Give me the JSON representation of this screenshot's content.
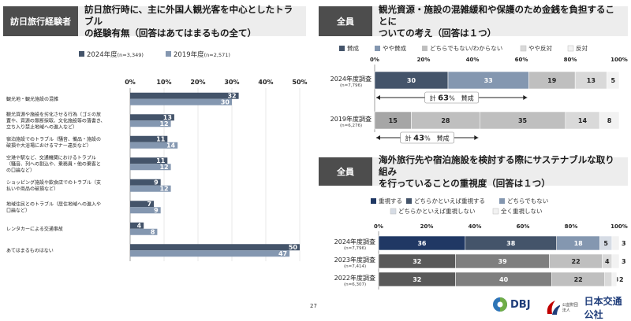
{
  "page_number": "27",
  "logos": {
    "dbj": "DBJ",
    "jtb_small": "公益財団法人",
    "jtb_big": "日本交通公社"
  },
  "left_panel": {
    "tag": "訪日旅行経験者",
    "title_lines": [
      "訪日旅行時に、主に外国人観光客を中心としたトラブル",
      "の経験有無（回答はあてはまるもの全て）"
    ]
  },
  "top_right_panel": {
    "tag": "全員",
    "title_lines": [
      "観光資源・施設の混雑緩和や保護のため金銭を負担することに",
      "ついての考え（回答は１つ）"
    ]
  },
  "bottom_right_panel": {
    "tag": "全員",
    "title_lines": [
      "海外旅行先や宿泊施設を検討する際にサステナブルな取り組み",
      "を行っていることの重視度（回答は１つ）"
    ]
  },
  "chart_data": [
    {
      "type": "bar",
      "orientation": "horizontal",
      "legend": [
        {
          "name": "2024年度",
          "n": "(n=3,349)",
          "color": "#44546a"
        },
        {
          "name": "2019年度",
          "n": "(n=2,571)",
          "color": "#8497b0"
        }
      ],
      "axis_ticks": [
        "0%",
        "10%",
        "20%",
        "30%",
        "40%",
        "50%"
      ],
      "xlim": [
        0,
        50
      ],
      "categories": [
        [
          "観光地・観光施設の混雑"
        ],
        [
          "観光資源や施設を劣化させる行為（ゴミの放",
          "置や、資源の無断採取、文化施設等の落書き、",
          "立ち入り禁止地域への進入など）"
        ],
        [
          "宿泊施設でのトラブル（騒音、備品・施設の",
          "破損や大浴場におけるマナー違反など）"
        ],
        [
          "空港や駅など、交通機関におけるトラブル",
          "（騒音、列への割込や、乗務員・他の乗客と",
          "の口論など）"
        ],
        [
          "ショッピング施設や飲食店でのトラブル（支",
          "払いや商品の破損など）"
        ],
        [
          "地域住民とのトラブル（居住地域への進入や",
          "口論など）"
        ],
        [
          "レンタカーによる交通事故"
        ],
        [
          "あてはまるものはない"
        ]
      ],
      "series": [
        {
          "name": "2024年度",
          "values": [
            32,
            13,
            11,
            11,
            9,
            7,
            4,
            50
          ]
        },
        {
          "name": "2019年度",
          "values": [
            30,
            12,
            14,
            12,
            12,
            9,
            8,
            47
          ]
        }
      ]
    },
    {
      "type": "bar",
      "orientation": "horizontal",
      "stacked": true,
      "legend_row1": [
        "賛成",
        "やや賛成",
        "どちらでもない/わからない",
        "やや反対",
        "反対"
      ],
      "colors": [
        "#44546a",
        "#8497b0",
        "#bfbfbf",
        "#d9d9d9",
        "#f2f2f2"
      ],
      "axis_ticks": [
        "0%",
        "20%",
        "40%",
        "60%",
        "80%",
        "100%"
      ],
      "rows": [
        {
          "label": "2024年度調査",
          "n": "(n=7,796)",
          "values": [
            30,
            33,
            19,
            13,
            5
          ],
          "colors": [
            "#44546a",
            "#8497b0",
            "#bfbfbf",
            "#d9d9d9",
            "#f2f2f2"
          ]
        },
        {
          "label": "2019年度調査",
          "n": "(n=6,276)",
          "values": [
            15,
            28,
            35,
            14,
            8
          ],
          "colors": [
            "#a6a6a6",
            "#bfbfbf",
            "#bfbfbf",
            "#d9d9d9",
            "#f2f2f2"
          ]
        }
      ],
      "annotations": [
        {
          "prefix": "計",
          "value": "63",
          "suffix": "%　賛成"
        },
        {
          "prefix": "計",
          "value": "43",
          "suffix": "%　賛成"
        }
      ]
    },
    {
      "type": "bar",
      "orientation": "horizontal",
      "stacked": true,
      "legend_row1": [
        "重視する",
        "どちらかといえば重視する",
        "どちらでもない"
      ],
      "legend_row2": [
        "どちらかといえば重視しない",
        "全く重視しない"
      ],
      "colors": [
        "#203864",
        "#44546a",
        "#8497b0",
        "#d6dce5",
        "#f2f2f2"
      ],
      "axis_ticks": [
        "0%",
        "20%",
        "40%",
        "60%",
        "80%",
        "100%"
      ],
      "rows": [
        {
          "label": "2024年度調査",
          "n": "(n=7,796)",
          "values": [
            36,
            38,
            18,
            5,
            3
          ],
          "colors": [
            "#203864",
            "#44546a",
            "#8497b0",
            "#d6dce5",
            "#f2f2f2"
          ]
        },
        {
          "label": "2023年度調査",
          "n": "(n=7,414)",
          "values": [
            32,
            39,
            22,
            4,
            3
          ],
          "colors": [
            "#595959",
            "#7f7f7f",
            "#bfbfbf",
            "#d9d9d9",
            "#f2f2f2"
          ]
        },
        {
          "label": "2022年度調査",
          "n": "(n=6,307)",
          "values": [
            32,
            40,
            22,
            3,
            2
          ],
          "colors": [
            "#595959",
            "#7f7f7f",
            "#bfbfbf",
            "#d9d9d9",
            "#f2f2f2"
          ]
        }
      ]
    }
  ]
}
